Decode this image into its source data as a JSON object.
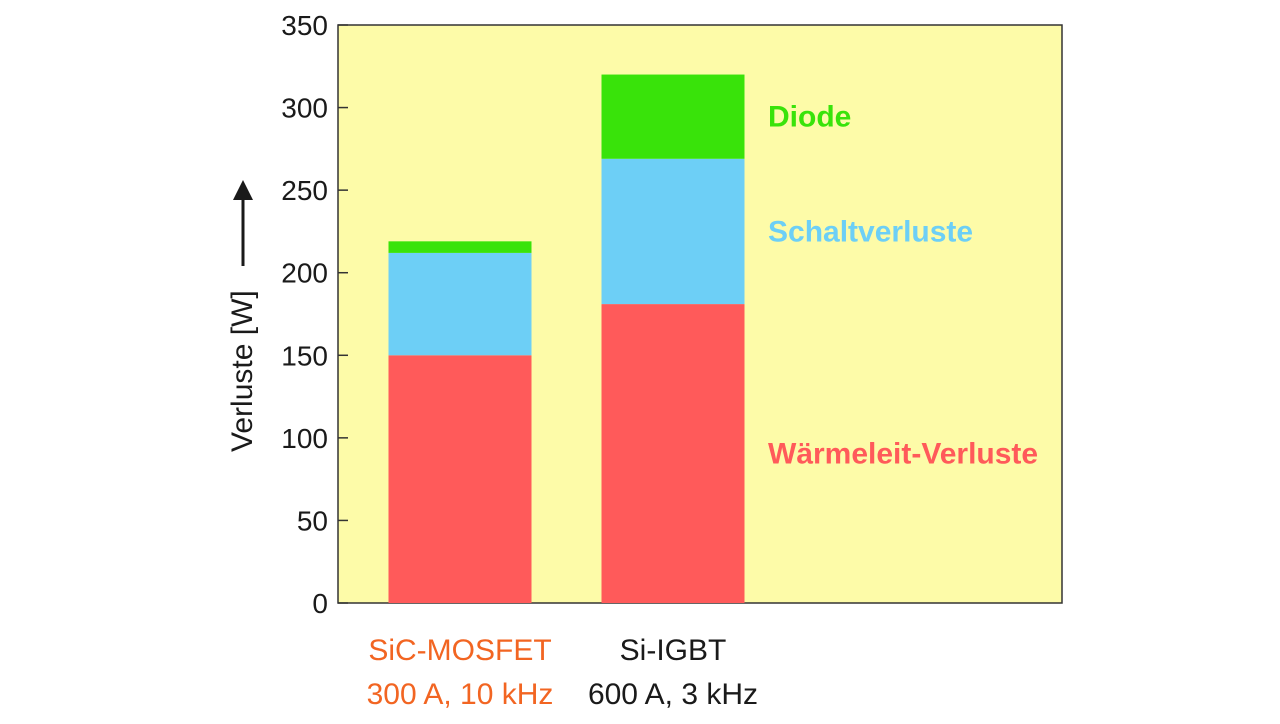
{
  "chart_data": {
    "type": "bar",
    "stacked": true,
    "ylabel": "Verluste [W]",
    "ylim": [
      0,
      350
    ],
    "yticks": [
      0,
      50,
      100,
      150,
      200,
      250,
      300,
      350
    ],
    "grid": false,
    "categories": [
      {
        "line1": "SiC-MOSFET",
        "line2": "300 A, 10 kHz",
        "color": "#f26522"
      },
      {
        "line1": "Si-IGBT",
        "line2": "600 A, 3 kHz",
        "color": "#1a1a1a"
      }
    ],
    "series": [
      {
        "name": "Wärmeleit-Verluste",
        "values": [
          150,
          181
        ],
        "color": "#ff5a5a"
      },
      {
        "name": "Schaltverluste",
        "values": [
          62,
          88
        ],
        "color": "#6dcff6"
      },
      {
        "name": "Diode",
        "values": [
          7,
          51
        ],
        "color": "#39e30a"
      }
    ],
    "legend_placement": "right, inline labels",
    "plot_background": "#fdfba8"
  }
}
